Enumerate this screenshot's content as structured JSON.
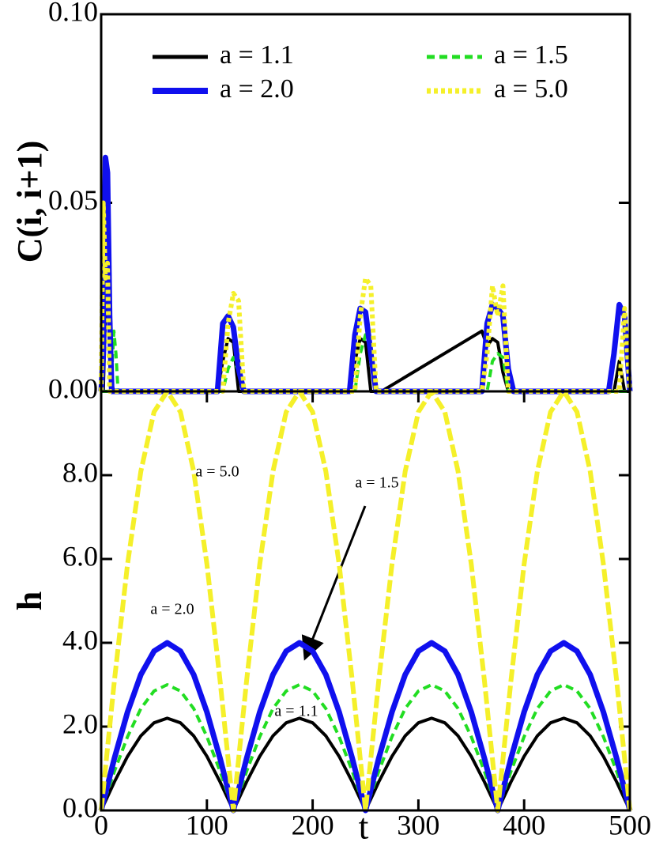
{
  "chart_data": [
    {
      "type": "line",
      "ylabel": "C(i, i+1)",
      "x": [
        0,
        2,
        4,
        6,
        8,
        10,
        12,
        14,
        16,
        110,
        115,
        120,
        125,
        130,
        135,
        140,
        235,
        240,
        245,
        250,
        255,
        260,
        265,
        360,
        365,
        370,
        375,
        380,
        385,
        390,
        480,
        485,
        490,
        495,
        500
      ],
      "xlim": [
        0,
        500
      ],
      "ylim": [
        0,
        0.1
      ],
      "yticks": [
        {
          "value": 0,
          "label": "0.00"
        },
        {
          "value": 0.05,
          "label": "0.05"
        },
        {
          "value": 0.1,
          "label": "0.10"
        }
      ],
      "legend": "top",
      "series": [
        {
          "name": "a = 1.1",
          "color": "#000000",
          "dash": "solid",
          "values": [
            0,
            0,
            0.02,
            0.04,
            0.035,
            0.002,
            0,
            0,
            0,
            0,
            0.008,
            0.014,
            0.013,
            0,
            0,
            0,
            0,
            0.008,
            0.014,
            0.013,
            0,
            0,
            0,
            0.016,
            0.012,
            0.014,
            0.013,
            0.005,
            0,
            0,
            0,
            0,
            0.008,
            0,
            0
          ]
        },
        {
          "name": "a = 1.5",
          "color": "#22dd22",
          "dash": "dashed",
          "values": [
            0,
            0,
            0,
            0,
            0,
            0.005,
            0.016,
            0.01,
            0,
            0,
            0,
            0.006,
            0.009,
            0.005,
            0,
            0,
            0,
            0,
            0.01,
            0.015,
            0.012,
            0,
            0,
            0,
            0,
            0.008,
            0.01,
            0.009,
            0,
            0,
            0,
            0,
            0,
            0,
            0
          ]
        },
        {
          "name": "a = 2.0",
          "color": "#1010ee",
          "dash": "solid",
          "values": [
            0,
            0.01,
            0.062,
            0.058,
            0.02,
            0,
            0,
            0,
            0,
            0,
            0.018,
            0.02,
            0.017,
            0.006,
            0,
            0,
            0,
            0.015,
            0.022,
            0.021,
            0.01,
            0,
            0,
            0,
            0.018,
            0.023,
            0.022,
            0.02,
            0.006,
            0,
            0,
            0.01,
            0.023,
            0.02,
            0
          ]
        },
        {
          "name": "a = 5.0",
          "color": "#f5f02a",
          "dash": "dotted",
          "values": [
            0,
            0.05,
            0.03,
            0.034,
            0,
            0,
            0,
            0,
            0,
            0,
            0,
            0.018,
            0.026,
            0.024,
            0,
            0,
            0,
            0,
            0.02,
            0.03,
            0.028,
            0,
            0,
            0,
            0.01,
            0.028,
            0.02,
            0.028,
            0,
            0,
            0,
            0,
            0,
            0.022,
            0
          ]
        }
      ]
    },
    {
      "type": "line",
      "xlabel": "t",
      "ylabel": "h",
      "x": [
        0,
        12.5,
        25,
        37.5,
        50,
        62.5,
        75,
        87.5,
        100,
        112.5,
        125,
        137.5,
        150,
        162.5,
        175,
        187.5,
        200,
        212.5,
        225,
        237.5,
        250,
        262.5,
        275,
        287.5,
        300,
        312.5,
        325,
        337.5,
        350,
        362.5,
        375,
        387.5,
        400,
        412.5,
        425,
        437.5,
        450,
        462.5,
        475,
        487.5,
        500
      ],
      "xlim": [
        0,
        500
      ],
      "xticks": [
        0,
        100,
        200,
        300,
        400,
        500
      ],
      "ylim": [
        0,
        10
      ],
      "yticks": [
        {
          "value": 0,
          "label": "0.0"
        },
        {
          "value": 2,
          "label": "2.0"
        },
        {
          "value": 4,
          "label": "4.0"
        },
        {
          "value": 6,
          "label": "6.0"
        },
        {
          "value": 8,
          "label": "8.0"
        }
      ],
      "annotations": [
        "a = 5.0",
        "a = 1.5",
        "a = 2.0",
        "a = 1.1"
      ],
      "series": [
        {
          "name": "a = 1.1",
          "color": "#000000",
          "dash": "solid",
          "values": [
            0,
            0.68,
            1.29,
            1.78,
            2.09,
            2.2,
            2.09,
            1.78,
            1.29,
            0.68,
            0,
            0.68,
            1.29,
            1.78,
            2.09,
            2.2,
            2.09,
            1.78,
            1.29,
            0.68,
            0,
            0.68,
            1.29,
            1.78,
            2.09,
            2.2,
            2.09,
            1.78,
            1.29,
            0.68,
            0,
            0.68,
            1.29,
            1.78,
            2.09,
            2.2,
            2.09,
            1.78,
            1.29,
            0.68,
            0
          ]
        },
        {
          "name": "a = 1.5",
          "color": "#22dd22",
          "dash": "dashed",
          "values": [
            0,
            0.93,
            1.76,
            2.43,
            2.85,
            3,
            2.85,
            2.43,
            1.76,
            0.93,
            0,
            0.93,
            1.76,
            2.43,
            2.85,
            3,
            2.85,
            2.43,
            1.76,
            0.93,
            0,
            0.93,
            1.76,
            2.43,
            2.85,
            3,
            2.85,
            2.43,
            1.76,
            0.93,
            0,
            0.93,
            1.76,
            2.43,
            2.85,
            3,
            2.85,
            2.43,
            1.76,
            0.93,
            0
          ]
        },
        {
          "name": "a = 2.0",
          "color": "#1010ee",
          "dash": "solid",
          "values": [
            0,
            1.24,
            2.35,
            3.24,
            3.8,
            4,
            3.8,
            3.24,
            2.35,
            1.24,
            0,
            1.24,
            2.35,
            3.24,
            3.8,
            4,
            3.8,
            3.24,
            2.35,
            1.24,
            0,
            1.24,
            2.35,
            3.24,
            3.8,
            4,
            3.8,
            3.24,
            2.35,
            1.24,
            0,
            1.24,
            2.35,
            3.24,
            3.8,
            4,
            3.8,
            3.24,
            2.35,
            1.24,
            0
          ]
        },
        {
          "name": "a = 5.0",
          "color": "#f5f02a",
          "dash": "longdash",
          "values": [
            0,
            3.09,
            5.88,
            8.09,
            9.51,
            10,
            9.51,
            8.09,
            5.88,
            3.09,
            0,
            3.09,
            5.88,
            8.09,
            9.51,
            10,
            9.51,
            8.09,
            5.88,
            3.09,
            0,
            3.09,
            5.88,
            8.09,
            9.51,
            10,
            9.51,
            8.09,
            5.88,
            3.09,
            0,
            3.09,
            5.88,
            8.09,
            9.51,
            10,
            9.51,
            8.09,
            5.88,
            3.09,
            0
          ]
        }
      ]
    }
  ]
}
